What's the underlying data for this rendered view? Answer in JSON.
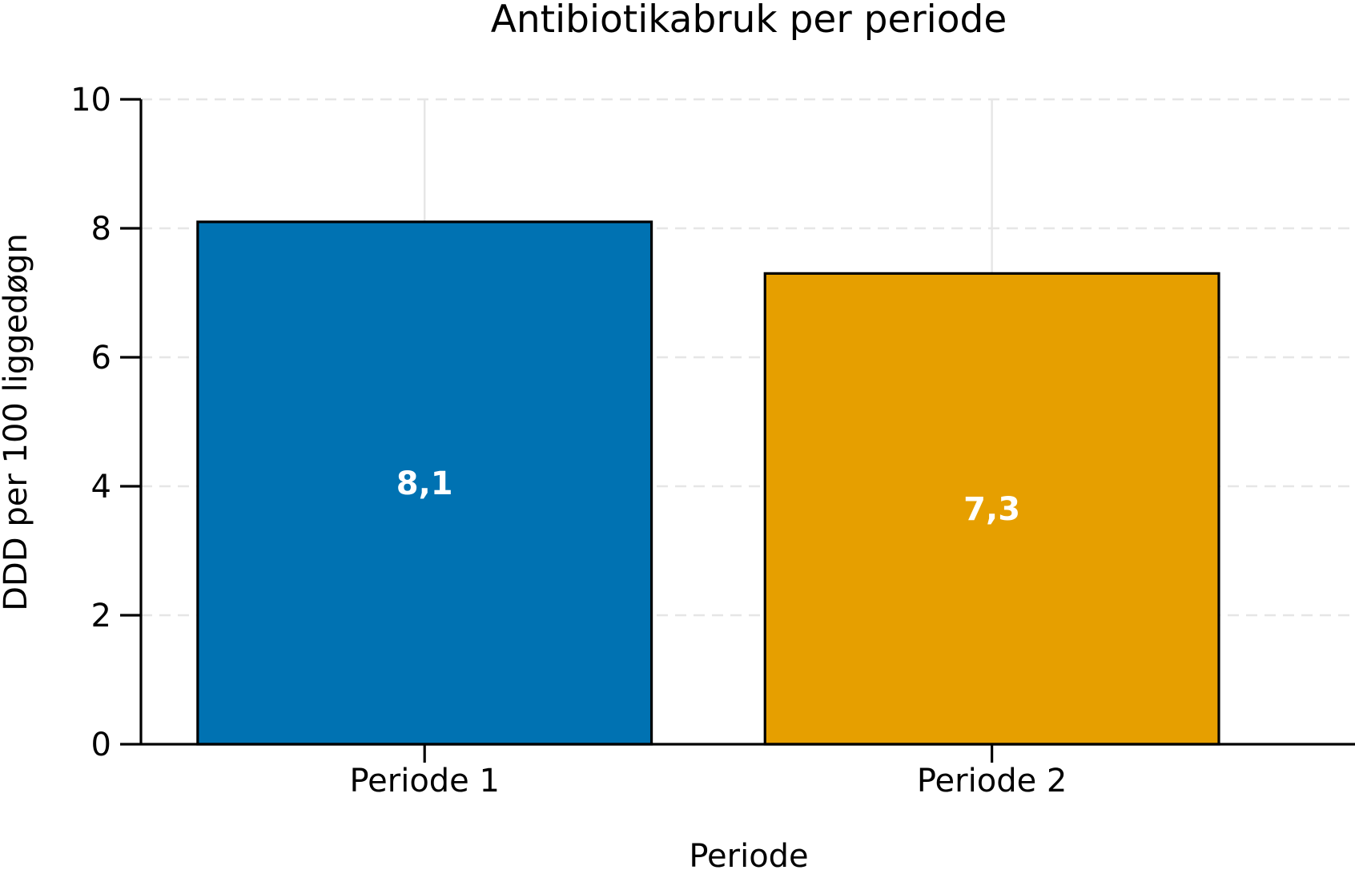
{
  "chart_data": {
    "type": "bar",
    "title": "Antibiotikabruk per periode",
    "xlabel": "Periode",
    "ylabel": "DDD per 100 liggedøgn",
    "categories": [
      "Periode 1",
      "Periode 2"
    ],
    "values": [
      8.1,
      7.3
    ],
    "value_labels": [
      "8,1",
      "7,3"
    ],
    "colors": [
      "#0072b2",
      "#e69f00"
    ],
    "ylim": [
      0,
      10
    ],
    "yticks": [
      0,
      2,
      4,
      6,
      8,
      10
    ],
    "ytick_labels": [
      "0",
      "2",
      "4",
      "6",
      "8",
      "10"
    ],
    "grid": true,
    "legend": "none"
  }
}
